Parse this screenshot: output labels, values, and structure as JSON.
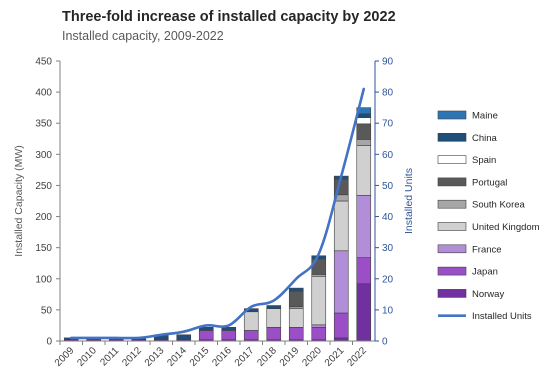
{
  "chart_data": {
    "type": "bar",
    "stacked": true,
    "title": "Three-fold increase of installed capacity by 2022",
    "subtitle": "Installed capacity, 2009-2022",
    "ylabel": "Installed Capacity (MW)",
    "y2label": "Installed Units",
    "ylim": [
      0,
      450
    ],
    "y2lim": [
      0,
      90
    ],
    "yticks": [
      0,
      50,
      100,
      150,
      200,
      250,
      300,
      350,
      400,
      450
    ],
    "y2ticks": [
      0,
      10,
      20,
      30,
      40,
      50,
      60,
      70,
      80,
      90
    ],
    "categories": [
      "2009",
      "2010",
      "2011",
      "2012",
      "2013",
      "2014",
      "2015",
      "2016",
      "2017",
      "2018",
      "2019",
      "2020",
      "2021",
      "2022"
    ],
    "series": [
      {
        "name": "Norway",
        "color": "#7030a0",
        "values": [
          2,
          2,
          2,
          2,
          2,
          2,
          2,
          2,
          2,
          2,
          2,
          2,
          5,
          92
        ]
      },
      {
        "name": "Japan",
        "color": "#9b4fc6",
        "values": [
          0,
          0,
          0,
          0,
          0,
          0,
          15,
          15,
          15,
          20,
          20,
          20,
          40,
          42
        ]
      },
      {
        "name": "France",
        "color": "#b28ed8",
        "values": [
          0,
          0,
          0,
          0,
          0,
          0,
          0,
          0,
          0,
          0,
          0,
          4,
          100,
          100
        ]
      },
      {
        "name": "United Kingdom",
        "color": "#d0d0d0",
        "values": [
          0,
          0,
          0,
          0,
          0,
          0,
          0,
          0,
          30,
          30,
          30,
          78,
          80,
          80
        ]
      },
      {
        "name": "South Korea",
        "color": "#a6a6a6",
        "values": [
          0,
          0,
          0,
          0,
          0,
          0,
          0,
          0,
          0,
          0,
          3,
          3,
          10,
          10
        ]
      },
      {
        "name": "Portugal",
        "color": "#595959",
        "values": [
          0,
          0,
          0,
          0,
          0,
          0,
          0,
          0,
          0,
          0,
          25,
          25,
          25,
          25
        ]
      },
      {
        "name": "Spain",
        "color": "#ffffff",
        "values": [
          0,
          0,
          0,
          0,
          0,
          0,
          0,
          0,
          0,
          0,
          0,
          0,
          0,
          10
        ]
      },
      {
        "name": "China",
        "color": "#1f4e79",
        "values": [
          3,
          3,
          3,
          3,
          8,
          8,
          5,
          5,
          5,
          5,
          5,
          5,
          5,
          6
        ]
      },
      {
        "name": "Maine",
        "color": "#2e75b6",
        "values": [
          0,
          0,
          0,
          0,
          0,
          0,
          0,
          0,
          0,
          0,
          0,
          0,
          0,
          10
        ]
      }
    ],
    "line_series": {
      "name": "Installed Units",
      "color": "#4472c4",
      "axis": "right",
      "values": [
        1,
        1,
        1,
        1,
        2,
        3,
        5,
        5,
        11,
        13,
        20,
        28,
        53,
        81
      ]
    },
    "legend_order": [
      "Maine",
      "China",
      "Spain",
      "Portugal",
      "South Korea",
      "United Kingdom",
      "France",
      "Japan",
      "Norway",
      "Installed Units"
    ],
    "legend_position": "right",
    "grid": false
  }
}
